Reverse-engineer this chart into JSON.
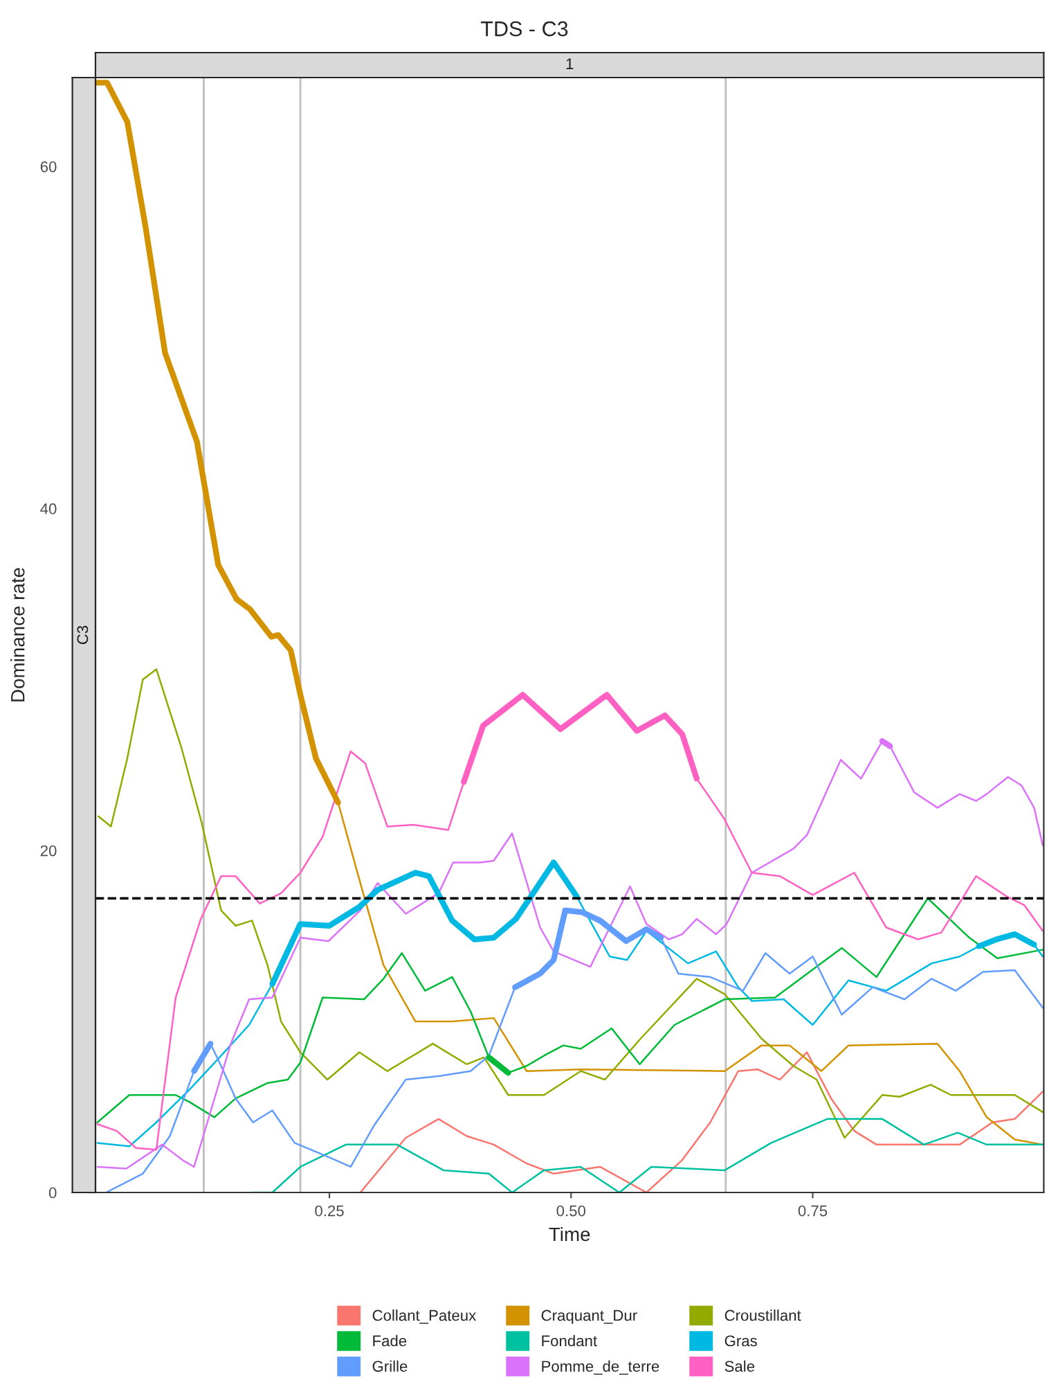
{
  "chart_data": {
    "type": "line",
    "title": "TDS - C3",
    "xlabel": "Time",
    "ylabel": "Dominance rate",
    "annotations": [
      "1",
      "C3"
    ],
    "xlim": [
      0.008,
      0.989
    ],
    "xticks": [
      0.25,
      {
        "value": 0.5,
        "label": "0.50"
      },
      0.75
    ],
    "ylim": [
      0,
      65.2
    ],
    "yticks": [
      0,
      20,
      40,
      60
    ],
    "grid": false,
    "legend": "bottom",
    "line_style": "solid",
    "ref_lines": [
      {
        "axis": "x",
        "value": 0.12,
        "color": "#bebebe"
      },
      {
        "axis": "x",
        "value": 0.22,
        "color": "#bebebe"
      },
      {
        "axis": "x",
        "value": 0.66,
        "color": "#bebebe"
      },
      {
        "axis": "y",
        "value": 17.2,
        "color": "#000000",
        "line_style": "dashed"
      }
    ],
    "series": [
      {
        "name": "Collant_Pateux",
        "color": "#f8766d",
        "x": [
          0.282,
          0.329,
          0.363,
          0.392,
          0.42,
          0.454,
          0.482,
          0.53,
          0.578,
          0.615,
          0.644,
          0.673,
          0.693,
          0.716,
          0.744,
          0.769,
          0.793,
          0.816,
          0.902,
          0.936,
          0.959,
          0.988
        ],
        "values": [
          0,
          3.2,
          4.3,
          3.3,
          2.8,
          1.7,
          1.1,
          1.5,
          0,
          1.9,
          4.1,
          7.1,
          7.2,
          6.6,
          8.2,
          5.5,
          3.6,
          2.8,
          2.8,
          4.1,
          4.3,
          5.9
        ]
      },
      {
        "name": "Craquant_Dur",
        "color": "#d39200",
        "x": [
          0.01,
          0.02,
          0.041,
          0.06,
          0.08,
          0.113,
          0.135,
          0.154,
          0.168,
          0.19,
          0.197,
          0.21,
          0.22,
          0.236,
          0.259,
          0.282,
          0.306,
          0.339,
          0.377,
          0.42,
          0.454,
          0.51,
          0.659,
          0.697,
          0.726,
          0.759,
          0.787,
          0.879,
          0.902,
          0.93,
          0.959,
          0.988
        ],
        "values": [
          64.9,
          64.9,
          62.6,
          56.4,
          49.1,
          43.9,
          36.7,
          34.7,
          34.1,
          32.5,
          32.6,
          31.7,
          29.1,
          25.4,
          22.8,
          18.1,
          13.3,
          10.0,
          10.0,
          10.2,
          7.1,
          7.2,
          7.1,
          8.6,
          8.6,
          7.1,
          8.6,
          8.7,
          7.1,
          4.4,
          3.1,
          2.8
        ]
      },
      {
        "name": "Croustillant",
        "color": "#93aa00",
        "x": [
          0.011,
          0.024,
          0.041,
          0.057,
          0.071,
          0.097,
          0.118,
          0.138,
          0.153,
          0.17,
          0.186,
          0.2,
          0.22,
          0.248,
          0.281,
          0.31,
          0.357,
          0.392,
          0.41,
          0.435,
          0.472,
          0.51,
          0.535,
          0.572,
          0.63,
          0.659,
          0.697,
          0.73,
          0.754,
          0.783,
          0.822,
          0.84,
          0.872,
          0.893,
          0.936,
          0.959,
          0.988
        ],
        "values": [
          22.0,
          21.4,
          25.4,
          30.0,
          30.6,
          26.0,
          21.6,
          16.5,
          15.6,
          15.9,
          13.3,
          10.0,
          8.2,
          6.6,
          8.2,
          7.1,
          8.7,
          7.5,
          7.9,
          5.7,
          5.7,
          7.1,
          6.6,
          9.0,
          12.5,
          11.6,
          9.0,
          7.4,
          6.6,
          3.2,
          5.7,
          5.6,
          6.3,
          5.7,
          5.7,
          5.7,
          4.7
        ]
      },
      {
        "name": "Fade",
        "color": "#00ba38",
        "x": [
          0.01,
          0.043,
          0.091,
          0.105,
          0.131,
          0.153,
          0.186,
          0.207,
          0.22,
          0.243,
          0.286,
          0.306,
          0.325,
          0.349,
          0.377,
          0.396,
          0.415,
          0.435,
          0.454,
          0.472,
          0.492,
          0.51,
          0.542,
          0.571,
          0.607,
          0.659,
          0.711,
          0.78,
          0.816,
          0.869,
          0.912,
          0.941,
          0.988
        ],
        "values": [
          4.1,
          5.7,
          5.7,
          5.3,
          4.4,
          5.5,
          6.4,
          6.6,
          7.6,
          11.4,
          11.3,
          12.5,
          14.0,
          11.8,
          12.6,
          10.6,
          7.9,
          7.0,
          7.4,
          8.0,
          8.6,
          8.4,
          9.6,
          7.5,
          9.8,
          11.3,
          11.4,
          14.3,
          12.6,
          17.2,
          14.9,
          13.7,
          14.2
        ]
      },
      {
        "name": "Fondant",
        "color": "#00c19f",
        "x": [
          0.17,
          0.191,
          0.22,
          0.267,
          0.32,
          0.368,
          0.415,
          0.439,
          0.472,
          0.51,
          0.55,
          0.583,
          0.659,
          0.707,
          0.765,
          0.822,
          0.865,
          0.9,
          0.93,
          0.988
        ],
        "values": [
          0,
          0,
          1.5,
          2.8,
          2.8,
          1.3,
          1.1,
          0,
          1.3,
          1.5,
          0,
          1.5,
          1.3,
          2.9,
          4.3,
          4.3,
          2.8,
          3.5,
          2.8,
          2.8
        ]
      },
      {
        "name": "Gras",
        "color": "#00b9e3",
        "x": [
          0.01,
          0.043,
          0.071,
          0.105,
          0.138,
          0.167,
          0.191,
          0.22,
          0.25,
          0.281,
          0.3,
          0.339,
          0.353,
          0.377,
          0.4,
          0.42,
          0.443,
          0.482,
          0.506,
          0.54,
          0.558,
          0.578,
          0.621,
          0.65,
          0.673,
          0.687,
          0.72,
          0.75,
          0.787,
          0.826,
          0.873,
          0.902,
          0.922,
          0.94,
          0.959,
          0.979,
          0.988
        ],
        "values": [
          2.9,
          2.7,
          4.1,
          6.0,
          8.0,
          9.8,
          12.2,
          15.7,
          15.6,
          16.7,
          17.7,
          18.7,
          18.5,
          15.9,
          14.8,
          14.9,
          16.0,
          19.3,
          17.3,
          13.8,
          13.6,
          15.3,
          13.4,
          14.1,
          12.0,
          11.2,
          11.3,
          9.8,
          12.4,
          11.8,
          13.4,
          13.8,
          14.4,
          14.8,
          15.1,
          14.5,
          13.8
        ]
      },
      {
        "name": "Grille",
        "color": "#619cff",
        "x": [
          0.019,
          0.057,
          0.085,
          0.11,
          0.127,
          0.138,
          0.153,
          0.171,
          0.191,
          0.214,
          0.248,
          0.272,
          0.296,
          0.329,
          0.363,
          0.396,
          0.415,
          0.442,
          0.468,
          0.482,
          0.494,
          0.511,
          0.53,
          0.557,
          0.578,
          0.593,
          0.611,
          0.644,
          0.678,
          0.701,
          0.726,
          0.75,
          0.78,
          0.812,
          0.845,
          0.873,
          0.898,
          0.926,
          0.959,
          0.988
        ],
        "values": [
          0,
          1.1,
          3.3,
          7.1,
          8.7,
          7.4,
          5.5,
          4.1,
          4.8,
          2.9,
          2.1,
          1.5,
          3.9,
          6.6,
          6.8,
          7.1,
          8.0,
          12.0,
          12.8,
          13.6,
          16.5,
          16.4,
          15.9,
          14.7,
          15.4,
          14.9,
          12.8,
          12.6,
          11.8,
          14.0,
          12.8,
          13.8,
          10.4,
          12.0,
          11.3,
          12.5,
          11.8,
          12.9,
          13.0,
          10.8
        ]
      },
      {
        "name": "Pomme_de_terre",
        "color": "#db72fb",
        "x": [
          0.01,
          0.04,
          0.077,
          0.098,
          0.11,
          0.128,
          0.148,
          0.167,
          0.191,
          0.22,
          0.249,
          0.282,
          0.3,
          0.329,
          0.363,
          0.378,
          0.406,
          0.42,
          0.439,
          0.468,
          0.482,
          0.52,
          0.561,
          0.578,
          0.601,
          0.615,
          0.63,
          0.65,
          0.661,
          0.687,
          0.73,
          0.744,
          0.779,
          0.8,
          0.822,
          0.83,
          0.855,
          0.879,
          0.902,
          0.919,
          0.93,
          0.952,
          0.966,
          0.979,
          0.988
        ],
        "values": [
          1.5,
          1.4,
          2.8,
          1.9,
          1.5,
          4.9,
          8.7,
          11.3,
          11.4,
          14.9,
          14.7,
          16.5,
          18.1,
          16.3,
          17.5,
          19.3,
          19.3,
          19.4,
          21.0,
          15.5,
          14.1,
          13.2,
          17.9,
          15.7,
          14.8,
          15.1,
          16.0,
          15.1,
          15.7,
          18.7,
          20.1,
          20.9,
          25.3,
          24.2,
          26.4,
          26.1,
          23.4,
          22.5,
          23.3,
          22.9,
          23.3,
          24.3,
          23.8,
          22.5,
          20.3
        ]
      },
      {
        "name": "Sale",
        "color": "#ff61c3",
        "x": [
          0.01,
          0.03,
          0.05,
          0.071,
          0.091,
          0.117,
          0.138,
          0.153,
          0.178,
          0.2,
          0.22,
          0.243,
          0.272,
          0.287,
          0.31,
          0.337,
          0.373,
          0.389,
          0.409,
          0.45,
          0.489,
          0.537,
          0.568,
          0.597,
          0.615,
          0.63,
          0.658,
          0.687,
          0.716,
          0.75,
          0.793,
          0.826,
          0.859,
          0.883,
          0.919,
          0.951,
          0.969,
          0.988
        ],
        "values": [
          4.0,
          3.6,
          2.6,
          2.5,
          11.4,
          16.0,
          18.5,
          18.5,
          16.9,
          17.5,
          18.7,
          20.8,
          25.8,
          25.1,
          21.4,
          21.5,
          21.2,
          24.0,
          27.3,
          29.1,
          27.1,
          29.1,
          27.0,
          27.9,
          26.8,
          24.2,
          21.9,
          18.7,
          18.5,
          17.4,
          18.7,
          15.5,
          14.8,
          15.2,
          18.5,
          17.3,
          16.8,
          15.3
        ]
      },
      {
        "color": "#d39200",
        "x": [
          0.01,
          0.02,
          0.041,
          0.06,
          0.08,
          0.113,
          0.135,
          0.154,
          0.168,
          0.19,
          0.197,
          0.21,
          0.22,
          0.236,
          0.259
        ],
        "values": [
          64.9,
          64.9,
          62.6,
          56.4,
          49.1,
          43.9,
          36.7,
          34.7,
          34.1,
          32.5,
          32.6,
          31.7,
          29.1,
          25.4,
          22.8
        ]
      },
      {
        "color": "#00ba38",
        "x": [
          0.415,
          0.435
        ],
        "values": [
          7.9,
          7.0
        ]
      },
      {
        "color": "#00b9e3",
        "x": [
          0.191,
          0.22,
          0.25,
          0.281,
          0.3,
          0.339,
          0.353,
          0.377,
          0.4,
          0.42,
          0.443,
          0.482,
          0.506
        ],
        "values": [
          12.2,
          15.7,
          15.6,
          16.7,
          17.7,
          18.7,
          18.5,
          15.9,
          14.8,
          14.9,
          16.0,
          19.3,
          17.3
        ]
      },
      {
        "color": "#00b9e3",
        "x": [
          0.922,
          0.94,
          0.959,
          0.979
        ],
        "values": [
          14.4,
          14.8,
          15.1,
          14.5
        ]
      },
      {
        "color": "#619cff",
        "x": [
          0.11,
          0.127
        ],
        "values": [
          7.1,
          8.7
        ]
      },
      {
        "color": "#619cff",
        "x": [
          0.442,
          0.468,
          0.482,
          0.494,
          0.511,
          0.53,
          0.557,
          0.578,
          0.593
        ],
        "values": [
          12.0,
          12.8,
          13.6,
          16.5,
          16.4,
          15.9,
          14.7,
          15.4,
          14.9
        ]
      },
      {
        "color": "#db72fb",
        "x": [
          0.822,
          0.83
        ],
        "values": [
          26.4,
          26.1
        ]
      },
      {
        "color": "#ff61c3",
        "x": [
          0.389,
          0.409,
          0.45,
          0.489,
          0.537,
          0.568,
          0.597,
          0.615,
          0.63
        ],
        "values": [
          24.0,
          27.3,
          29.1,
          27.1,
          29.1,
          27.0,
          27.9,
          26.8,
          24.2
        ]
      }
    ]
  }
}
